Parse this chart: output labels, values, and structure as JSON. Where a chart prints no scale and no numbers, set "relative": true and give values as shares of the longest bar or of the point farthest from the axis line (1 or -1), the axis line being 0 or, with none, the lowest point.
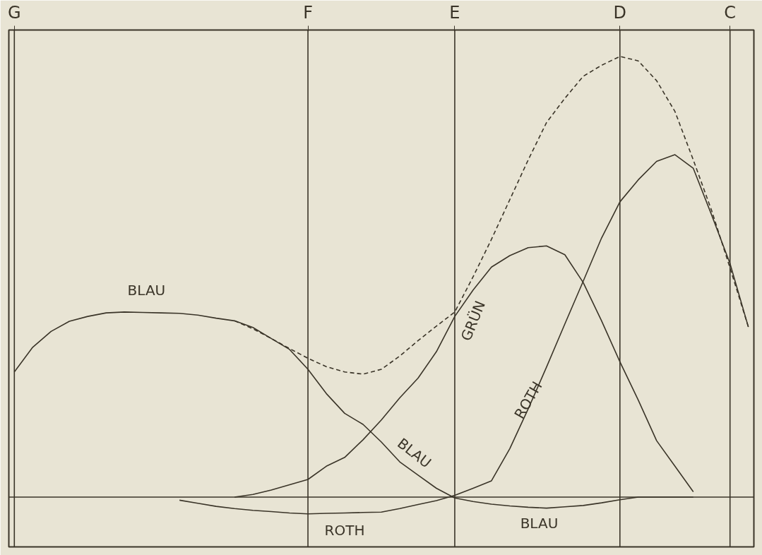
{
  "chart_data": {
    "type": "line",
    "relative": true,
    "line_style": "solid",
    "categories": [
      "G",
      null,
      null,
      null,
      null,
      null,
      null,
      null,
      null,
      null,
      null,
      null,
      null,
      null,
      null,
      null,
      "F",
      null,
      null,
      null,
      null,
      null,
      null,
      null,
      "E",
      null,
      null,
      null,
      null,
      null,
      null,
      null,
      null,
      "D",
      null,
      null,
      null,
      null,
      null,
      "C",
      null
    ],
    "series": [
      {
        "color": "#3a3428",
        "values": [
          0.284,
          0.34,
          0.376,
          0.399,
          0.41,
          0.418,
          0.42,
          0.419,
          0.418,
          0.417,
          0.413,
          0.406,
          0.4,
          0.385,
          0.36,
          0.335,
          0.29,
          0.235,
          0.19,
          0.165,
          0.125,
          0.08,
          0.05,
          0.02,
          -0.002,
          -0.01,
          -0.016,
          -0.02,
          -0.023,
          -0.025,
          -0.022,
          -0.019,
          -0.013,
          -0.006,
          0,
          0,
          0,
          0,
          null,
          null,
          null
        ]
      },
      {
        "color": "#3a3428",
        "values": [
          null,
          null,
          null,
          null,
          null,
          null,
          null,
          null,
          null,
          null,
          null,
          null,
          0,
          0.006,
          0.016,
          0.028,
          0.04,
          0.07,
          0.09,
          0.13,
          0.175,
          0.225,
          0.27,
          0.33,
          0.41,
          0.47,
          0.522,
          0.548,
          0.566,
          0.57,
          0.55,
          0.487,
          0.4,
          0.307,
          0.22,
          0.128,
          0.07,
          0.012,
          null,
          null,
          null
        ]
      },
      {
        "color": "#3a3428",
        "values": [
          null,
          null,
          null,
          null,
          null,
          null,
          null,
          null,
          null,
          -0.007,
          -0.014,
          -0.021,
          -0.026,
          -0.03,
          -0.033,
          -0.036,
          -0.038,
          -0.037,
          -0.036,
          -0.035,
          -0.034,
          -0.026,
          -0.017,
          -0.008,
          0.004,
          0.02,
          0.037,
          0.11,
          0.2,
          0.295,
          0.393,
          0.49,
          0.588,
          0.67,
          0.72,
          0.762,
          0.777,
          0.746,
          0.64,
          0.53,
          0.386
        ]
      },
      {
        "color": "#3a3428",
        "line_style": "dashed",
        "values": [
          null,
          null,
          null,
          null,
          null,
          null,
          null,
          null,
          null,
          null,
          null,
          null,
          0.4,
          0.382,
          0.36,
          0.337,
          0.315,
          0.296,
          0.284,
          0.279,
          0.29,
          0.32,
          0.355,
          0.388,
          0.42,
          0.5,
          0.585,
          0.675,
          0.765,
          0.85,
          0.905,
          0.955,
          0.98,
          1,
          0.99,
          0.945,
          0.875,
          0.765,
          0.65,
          0.52,
          0.386
        ]
      }
    ],
    "ref_lines": [
      {
        "axis": "x",
        "value": "G",
        "color": "#3a3428"
      },
      {
        "axis": "x",
        "value": "F",
        "color": "#3a3428"
      },
      {
        "axis": "x",
        "value": "E",
        "color": "#3a3428"
      },
      {
        "axis": "x",
        "value": "D",
        "color": "#3a3428"
      },
      {
        "axis": "x",
        "value": "C",
        "color": "#3a3428"
      }
    ],
    "annotations": [
      "BLAU",
      "GRÜN",
      "ROTH",
      "BLAU",
      "ROTH",
      "BLAU"
    ]
  }
}
